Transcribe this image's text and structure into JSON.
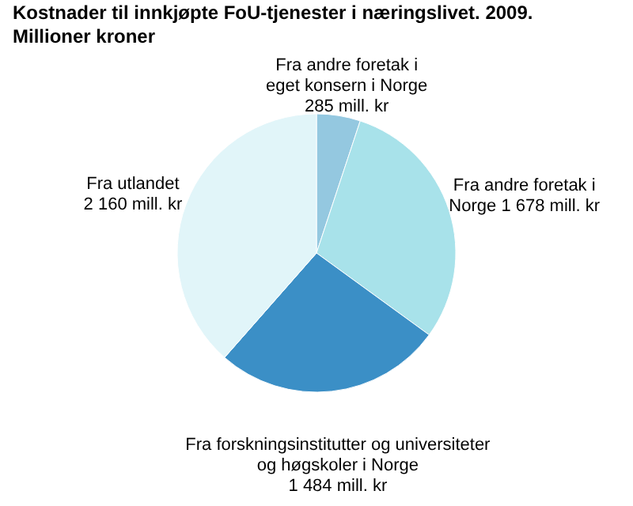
{
  "chart_data": {
    "type": "pie",
    "title": "Kostnader til innkjøpte FoU-tjenester i næringslivet. 2009. Millioner kroner",
    "categories": [
      "Fra andre foretak i eget konsern i Norge",
      "Fra andre foretak i Norge",
      "Fra forskningsinstitutter og universiteter og høgskoler i Norge",
      "Fra utlandet"
    ],
    "values": [
      285,
      1678,
      1484,
      2160
    ],
    "value_labels": [
      "285 mill. kr",
      "1 678 mill. kr",
      "1 484 mill. kr",
      "2 160 mill. kr"
    ],
    "colors": [
      "#94c8e0",
      "#a8e2ea",
      "#3b8fc6",
      "#e1f5f9"
    ]
  }
}
